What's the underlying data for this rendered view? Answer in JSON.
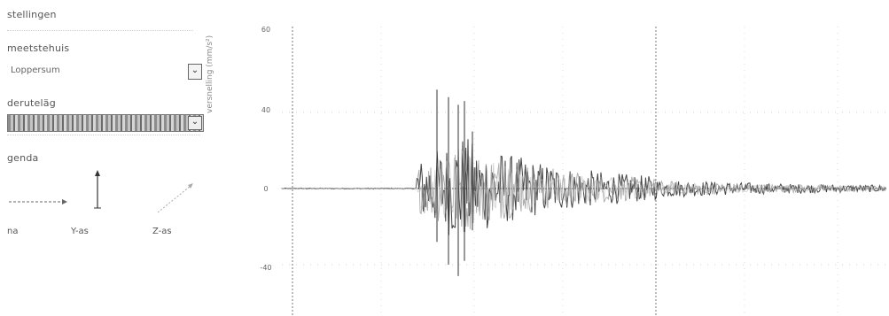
{
  "sidebar": {
    "title": "stellingen",
    "meetstation": {
      "label": "meetstehuis",
      "selected": "Loppersum"
    },
    "gebeurtenis": {
      "label": "deruteläg"
    },
    "legend": {
      "title": "genda",
      "items": [
        {
          "label": "na",
          "icon": "x-axis-arrow-icon"
        },
        {
          "label": "Y-as",
          "icon": "y-axis-arrow-icon"
        },
        {
          "label": "Z-as",
          "icon": "z-axis-arrow-icon"
        }
      ]
    }
  },
  "chart_data": {
    "type": "line",
    "ylabel": "versnelling (mm/s²)",
    "ylim": [
      -60,
      60
    ],
    "yticks": [
      "60",
      "40",
      "0",
      "-40"
    ],
    "grid": true,
    "series_colors": [
      "#222222",
      "#888888",
      "#bbbbbb"
    ]
  }
}
